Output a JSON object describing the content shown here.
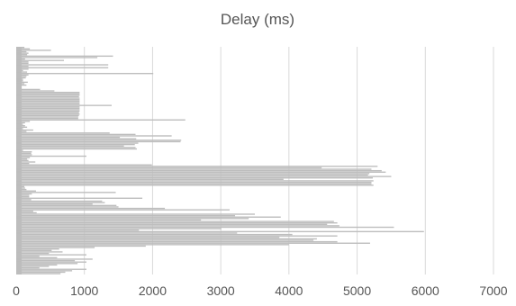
{
  "chart_data": {
    "type": "bar",
    "orientation": "horizontal",
    "title": "Delay (ms)",
    "xlabel": "",
    "ylabel": "",
    "xlim": [
      0,
      7000
    ],
    "x_ticks": [
      0,
      1000,
      2000,
      3000,
      4000,
      5000,
      6000,
      7000
    ],
    "x_tick_labels": [
      "0",
      "1000",
      "2000",
      "3000",
      "4000",
      "5000",
      "6000",
      "7000"
    ],
    "grid": true,
    "legend": "none",
    "colors": {
      "bar": "#bdbdbd",
      "grid": "#d9d9d9",
      "text": "#555555"
    },
    "series": [
      {
        "values": [
          120,
          200,
          510,
          150,
          180,
          160,
          1420,
          1190,
          130,
          700,
          180,
          180,
          1350,
          180,
          1350,
          180,
          100,
          160,
          2010,
          180,
          150,
          140,
          100,
          100,
          170,
          120,
          150,
          80,
          80,
          350,
          560,
          930,
          930,
          930,
          920,
          930,
          930,
          930,
          930,
          930,
          1400,
          930,
          930,
          930,
          930,
          920,
          930,
          920,
          910,
          910,
          2480,
          200,
          130,
          100,
          130,
          160,
          100,
          250,
          150,
          1370,
          1750,
          2280,
          1520,
          1760,
          2420,
          2410,
          1790,
          1740,
          1580,
          1750,
          1770,
          100,
          230,
          220,
          230,
          1030,
          200,
          160,
          180,
          280,
          190,
          1990,
          5300,
          4480,
          5210,
          5360,
          5420,
          5180,
          5160,
          5500,
          5230,
          3920,
          5240,
          5210,
          5210,
          5240,
          120,
          130,
          150,
          290,
          1460,
          230,
          190,
          190,
          1850,
          220,
          1260,
          1300,
          1120,
          1470,
          1500,
          2180,
          3130,
          250,
          300,
          3500,
          3210,
          3880,
          3410,
          2710,
          4660,
          4710,
          4560,
          4740,
          5540,
          3010,
          1800,
          5980,
          3240,
          4050,
          4710,
          3860,
          4410,
          4360,
          4710,
          5190,
          4000,
          1900,
          1150,
          630,
          520,
          680,
          480,
          1030,
          340,
          600,
          1120,
          860,
          1030,
          900,
          600,
          480,
          340,
          1030,
          820,
          720,
          650
        ]
      }
    ]
  }
}
